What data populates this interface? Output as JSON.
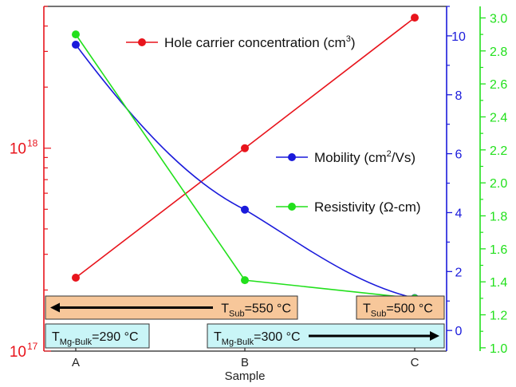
{
  "chart_data": {
    "type": "line",
    "categories": [
      "A",
      "B",
      "C"
    ],
    "xlabel": "Sample",
    "axes": {
      "left": {
        "scale": "log",
        "range": [
          1e+17,
          5e+18
        ],
        "ticks": [
          {
            "value": 1e+17,
            "label": "10",
            "exp": "17"
          },
          {
            "value": 1e+18,
            "label": "10",
            "exp": "18"
          }
        ],
        "color": "#e8141c"
      },
      "right1": {
        "scale": "linear",
        "range": [
          -0.7,
          11.0
        ],
        "ticks": [
          0,
          2,
          4,
          6,
          8,
          10
        ],
        "color": "#1a1adb"
      },
      "right2": {
        "scale": "linear",
        "range": [
          0.98,
          3.07
        ],
        "ticks": [
          "1.0",
          "1.2",
          "1.4",
          "1.6",
          "1.8",
          "2.0",
          "2.2",
          "2.4",
          "2.6",
          "2.8",
          "3.0"
        ],
        "color": "#22e01c"
      }
    },
    "series": [
      {
        "name": "Hole carrier concentration (cm3)",
        "axis": "left",
        "color": "#e8141c",
        "values": [
          2.3e+17,
          1e+18,
          4.4e+18
        ]
      },
      {
        "name": "Mobility (cm2/Vs)",
        "axis": "right1",
        "color": "#1a1adb",
        "values": [
          9.7,
          4.1,
          1.1
        ]
      },
      {
        "name": "Resistivity (Ω-cm)",
        "axis": "right2",
        "color": "#22e01c",
        "values": [
          2.9,
          1.41,
          1.3
        ]
      }
    ],
    "legend": [
      {
        "text": "Hole carrier concentration (cm",
        "sup": "3",
        "tail": ")",
        "color": "#e8141c"
      },
      {
        "text": "Mobility (cm",
        "sup": "2",
        "tail": "/Vs)",
        "color": "#1a1adb"
      },
      {
        "text": "Resistivity (Ω-cm)",
        "sup": "",
        "tail": "",
        "color": "#22e01c"
      }
    ],
    "annotations": [
      {
        "main": "T",
        "sub": "Sub",
        "tail": "=550 °C",
        "fill": "#f7c79a",
        "arrow": "left"
      },
      {
        "main": "T",
        "sub": "Sub",
        "tail": "=500 °C",
        "fill": "#f7c79a",
        "arrow": "none"
      },
      {
        "main": "T",
        "sub": "Mg-Bulk",
        "tail": "=290 °C",
        "fill": "#c9f5f7",
        "arrow": "none"
      },
      {
        "main": "T",
        "sub": "Mg-Bulk",
        "tail": "=300 °C",
        "fill": "#c9f5f7",
        "arrow": "right"
      }
    ]
  }
}
